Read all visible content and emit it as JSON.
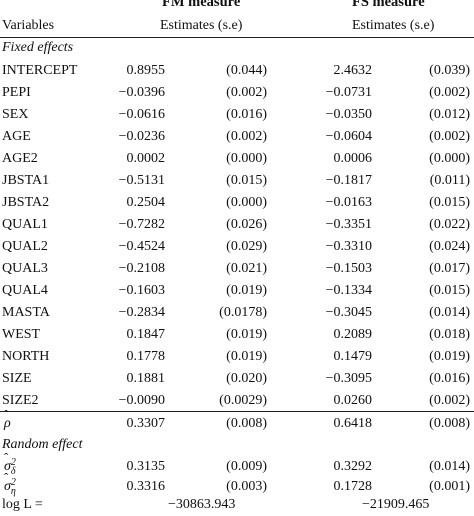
{
  "header": {
    "fm_title": "FM measure",
    "fs_title": "FS measure",
    "variables_label": "Variables",
    "fm_sub": "Estimates (s.e)",
    "fs_sub": "Estimates (s.e)"
  },
  "sections": {
    "fixed": "Fixed effects",
    "random": "Random effect"
  },
  "fixed_rows": [
    {
      "var": "INTERCEPT",
      "fm_est": "0.8955",
      "fm_se": "(0.044)",
      "fs_est": "2.4632",
      "fs_se": "(0.039)"
    },
    {
      "var": "PEPI",
      "fm_est": "−0.0396",
      "fm_se": "(0.002)",
      "fs_est": "−0.0731",
      "fs_se": "(0.002)"
    },
    {
      "var": "SEX",
      "fm_est": "−0.0616",
      "fm_se": "(0.016)",
      "fs_est": "−0.0350",
      "fs_se": "(0.012)"
    },
    {
      "var": "AGE",
      "fm_est": "−0.0236",
      "fm_se": "(0.002)",
      "fs_est": "−0.0604",
      "fs_se": "(0.002)"
    },
    {
      "var": "AGE2",
      "fm_est": "0.0002",
      "fm_se": "(0.000)",
      "fs_est": "0.0006",
      "fs_se": "(0.000)"
    },
    {
      "var": "JBSTA1",
      "fm_est": "−0.5131",
      "fm_se": "(0.015)",
      "fs_est": "−0.1817",
      "fs_se": "(0.011)"
    },
    {
      "var": "JBSTA2",
      "fm_est": "0.2504",
      "fm_se": "(0.000)",
      "fs_est": "−0.0163",
      "fs_se": "(0.015)"
    },
    {
      "var": "QUAL1",
      "fm_est": "−0.7282",
      "fm_se": "(0.026)",
      "fs_est": "−0.3351",
      "fs_se": "(0.022)"
    },
    {
      "var": "QUAL2",
      "fm_est": "−0.4524",
      "fm_se": "(0.029)",
      "fs_est": "−0.3310",
      "fs_se": "(0.024)"
    },
    {
      "var": "QUAL3",
      "fm_est": "−0.2108",
      "fm_se": "(0.021)",
      "fs_est": "−0.1503",
      "fs_se": "(0.017)"
    },
    {
      "var": "QUAL4",
      "fm_est": "−0.1603",
      "fm_se": "(0.019)",
      "fs_est": "−0.1334",
      "fs_se": "(0.015)"
    },
    {
      "var": "MASTA",
      "fm_est": "−0.2834",
      "fm_se": "(0.0178)",
      "fs_est": "−0.3045",
      "fs_se": "(0.014)"
    },
    {
      "var": "WEST",
      "fm_est": "0.1847",
      "fm_se": "(0.019)",
      "fs_est": "0.2089",
      "fs_se": "(0.018)"
    },
    {
      "var": "NORTH",
      "fm_est": "0.1778",
      "fm_se": "(0.019)",
      "fs_est": "0.1479",
      "fs_se": "(0.019)"
    },
    {
      "var": "SIZE",
      "fm_est": "0.1881",
      "fm_se": "(0.020)",
      "fs_est": "−0.3095",
      "fs_se": "(0.016)"
    },
    {
      "var": "SIZE2",
      "fm_est": "−0.0090",
      "fm_se": "(0.0029)",
      "fs_est": "0.0260",
      "fs_se": "(0.002)"
    }
  ],
  "rho_row": {
    "var": "ρ",
    "fm_est": "0.3307",
    "fm_se": "(0.008)",
    "fs_est": "0.6418",
    "fs_se": "(0.008)"
  },
  "random_rows": [
    {
      "var": "σ",
      "sup": "2",
      "sub": "δ",
      "fm_est": "0.3135",
      "fm_se": "(0.009)",
      "fs_est": "0.3292",
      "fs_se": "(0.014)"
    },
    {
      "var": "σ",
      "sup": "2",
      "sub": "η",
      "fm_est": "0.3316",
      "fm_se": "(0.003)",
      "fs_est": "0.1728",
      "fs_se": "(0.001)"
    }
  ],
  "loglik": {
    "label": "log L =",
    "fm": "−30863.943",
    "fs": "−21909.465"
  }
}
